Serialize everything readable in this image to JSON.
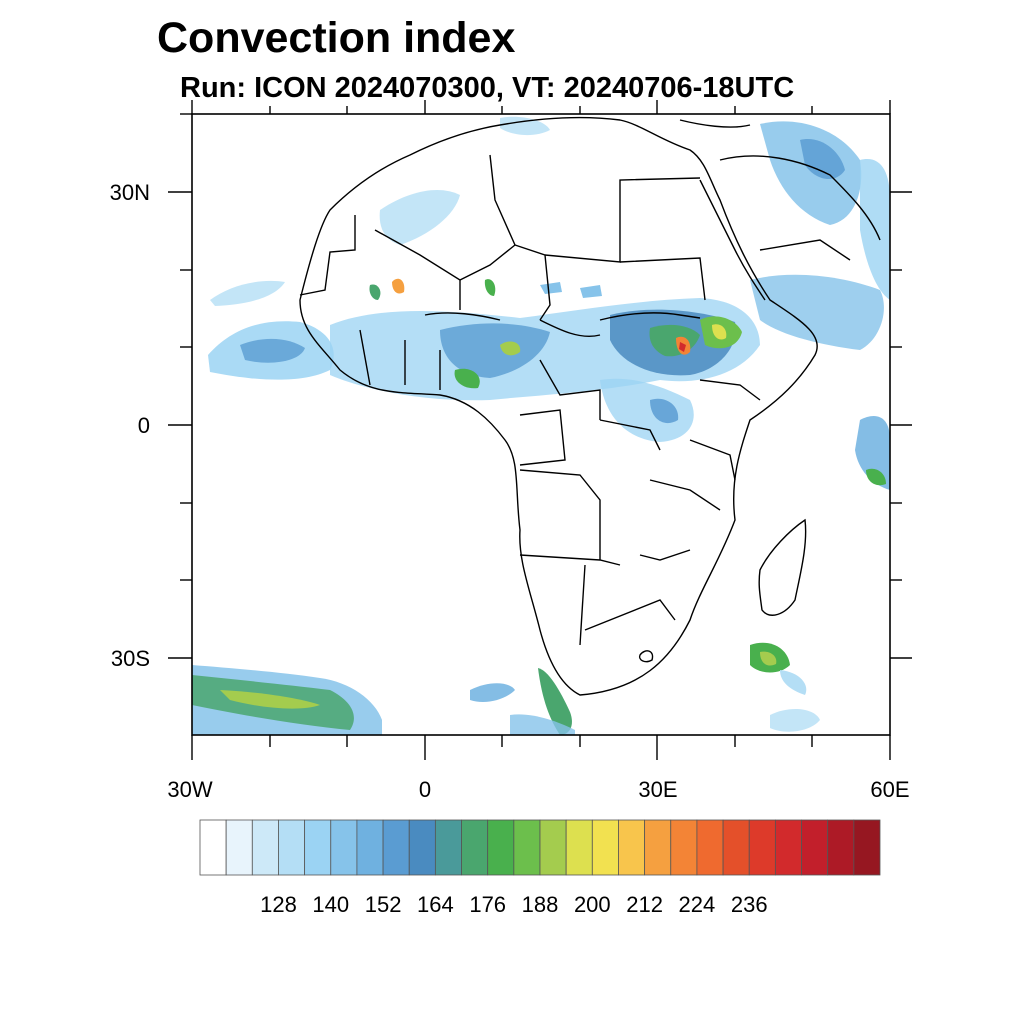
{
  "title": "Convection index",
  "subtitle": "Run: ICON 2024070300,  VT: 20240706-18UTC",
  "axes": {
    "x_ticks": [
      {
        "value": -30,
        "label": "30W"
      },
      {
        "value": 0,
        "label": "0"
      },
      {
        "value": 30,
        "label": "30E"
      },
      {
        "value": 60,
        "label": "60E"
      }
    ],
    "y_ticks": [
      {
        "value": 30,
        "label": "30N"
      },
      {
        "value": 0,
        "label": "0"
      },
      {
        "value": -30,
        "label": "30S"
      }
    ],
    "lon_range": [
      -30,
      60
    ],
    "lat_range": [
      -40,
      40
    ]
  },
  "colorbar": {
    "colors": [
      "#ffffff",
      "#e8f4fc",
      "#cde9f8",
      "#b4def5",
      "#9bd3f3",
      "#86c3ea",
      "#6fb1e0",
      "#5a9cd2",
      "#4a8bc0",
      "#4a9a9a",
      "#4aa66e",
      "#49b04d",
      "#6cbf4c",
      "#a4cc4e",
      "#dde04f",
      "#f2e150",
      "#f8c54c",
      "#f5a040",
      "#f38436",
      "#ef6a2f",
      "#e4502a",
      "#dd3a2a",
      "#d22a2c",
      "#c21f2b",
      "#ad1a26",
      "#961721"
    ],
    "labels": [
      "128",
      "140",
      "152",
      "164",
      "176",
      "188",
      "200",
      "212",
      "224",
      "236"
    ]
  }
}
